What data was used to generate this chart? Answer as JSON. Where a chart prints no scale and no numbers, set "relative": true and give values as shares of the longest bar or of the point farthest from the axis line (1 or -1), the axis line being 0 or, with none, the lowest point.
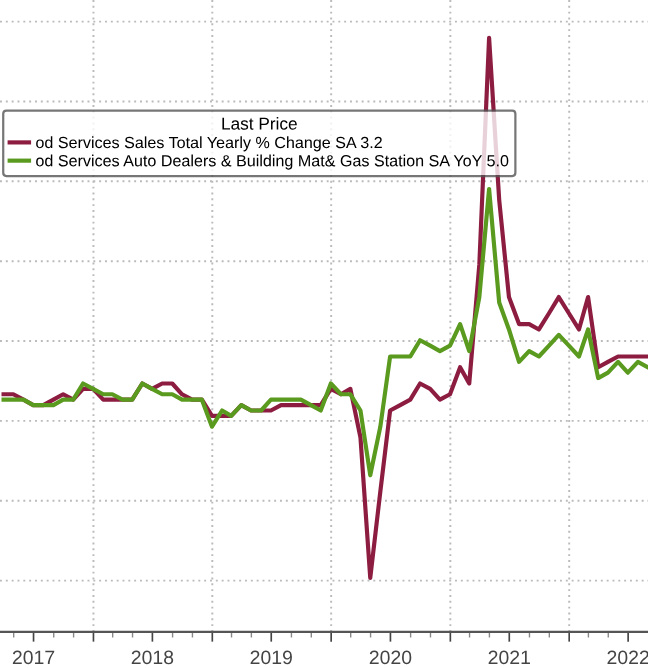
{
  "chart_data": {
    "type": "line",
    "relative": true,
    "legend_title": "Last Price",
    "legend": "top left",
    "grid": true,
    "marker": "none",
    "line_style": "solid",
    "x": [
      "2017-03-31",
      "2017-04-30",
      "2017-05-31",
      "2017-06-30",
      "2017-07-31",
      "2017-08-31",
      "2017-09-30",
      "2017-10-31",
      "2017-11-30",
      "2017-12-31",
      "2018-01-31",
      "2018-02-28",
      "2018-03-31",
      "2018-04-30",
      "2018-05-31",
      "2018-06-30",
      "2018-07-31",
      "2018-08-31",
      "2018-09-30",
      "2018-10-31",
      "2018-11-30",
      "2018-12-31",
      "2019-01-31",
      "2019-02-28",
      "2019-03-31",
      "2019-04-30",
      "2019-05-31",
      "2019-06-30",
      "2019-07-31",
      "2019-08-31",
      "2019-09-30",
      "2019-10-31",
      "2019-11-30",
      "2019-12-31",
      "2020-01-31",
      "2020-02-29",
      "2020-03-31",
      "2020-04-30",
      "2020-05-31",
      "2020-06-30",
      "2020-07-31",
      "2020-08-31",
      "2020-09-30",
      "2020-10-31",
      "2020-11-30",
      "2020-12-31",
      "2021-01-31",
      "2021-02-28",
      "2021-03-31",
      "2021-04-30",
      "2021-05-31",
      "2021-06-30",
      "2021-07-31",
      "2021-08-31",
      "2021-09-30",
      "2021-10-31",
      "2021-11-30",
      "2021-12-31",
      "2022-01-31",
      "2022-02-28",
      "2022-03-31",
      "2022-04-30",
      "2022-05-31",
      "2022-06-30",
      "2022-07-31",
      "2022-08-31"
    ],
    "xlim": [
      "2017-03-20",
      "2022-08-31"
    ],
    "xticks": [
      {
        "value": "2017-07-01",
        "label": "2017"
      },
      {
        "value": "2018-01-01",
        "label": null
      },
      {
        "value": "2018-07-01",
        "label": "2018"
      },
      {
        "value": "2019-01-01",
        "label": null
      },
      {
        "value": "2019-07-01",
        "label": "2019"
      },
      {
        "value": "2020-01-01",
        "label": null
      },
      {
        "value": "2020-07-01",
        "label": "2020"
      },
      {
        "value": "2021-01-01",
        "label": null
      },
      {
        "value": "2021-07-01",
        "label": "2021"
      },
      {
        "value": "2022-01-01",
        "label": null
      },
      {
        "value": "2022-07-01",
        "label": "2022"
      }
    ],
    "series": [
      {
        "name": "od Services Sales Total Yearly % Change SA 3.2",
        "color": "#8c1d40",
        "values": [
          0.34,
          0.34,
          0.33,
          0.32,
          0.32,
          0.33,
          0.34,
          0.33,
          0.35,
          0.35,
          0.33,
          0.33,
          0.33,
          0.33,
          0.36,
          0.35,
          0.36,
          0.36,
          0.34,
          0.33,
          0.33,
          0.3,
          0.3,
          0.3,
          0.32,
          0.31,
          0.31,
          0.31,
          0.32,
          0.32,
          0.32,
          0.32,
          0.32,
          0.35,
          0.34,
          0.35,
          0.26,
          0,
          0.16,
          0.31,
          0.32,
          0.33,
          0.36,
          0.35,
          0.33,
          0.34,
          0.39,
          0.36,
          0.58,
          1,
          0.7,
          0.52,
          0.47,
          0.47,
          0.46,
          0.49,
          0.52,
          0.49,
          0.46,
          0.52,
          0.39,
          0.4,
          0.41,
          0.41,
          0.41,
          0.41
        ]
      },
      {
        "name": "od Services Auto Dealers & Building Mat& Gas Station SA YoY 5.0",
        "color": "#5a9a1f",
        "values": [
          0.33,
          0.33,
          0.33,
          0.32,
          0.32,
          0.32,
          0.33,
          0.33,
          0.36,
          0.35,
          0.34,
          0.34,
          0.33,
          0.33,
          0.36,
          0.35,
          0.34,
          0.34,
          0.33,
          0.33,
          0.33,
          0.28,
          0.31,
          0.3,
          0.32,
          0.31,
          0.31,
          0.33,
          0.33,
          0.33,
          0.33,
          0.32,
          0.31,
          0.36,
          0.34,
          0.34,
          0.31,
          0.19,
          0.28,
          0.41,
          0.41,
          0.41,
          0.44,
          0.43,
          0.42,
          0.43,
          0.47,
          0.42,
          0.52,
          0.72,
          0.51,
          0.46,
          0.4,
          0.42,
          0.41,
          0.43,
          0.45,
          0.43,
          0.41,
          0.46,
          0.37,
          0.38,
          0.4,
          0.38,
          0.4,
          0.39
        ]
      }
    ]
  }
}
